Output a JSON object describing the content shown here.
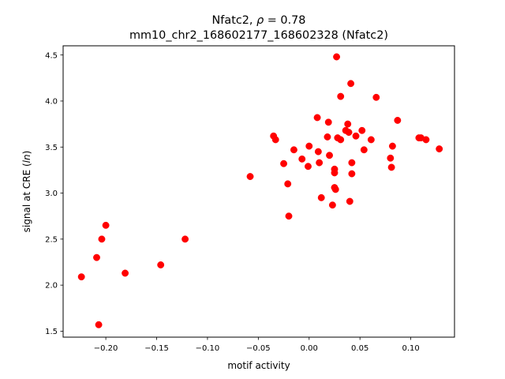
{
  "chart_data": {
    "type": "scatter",
    "title_line1_prefix": "Nfatc2, ",
    "title_line1_rho": "ρ",
    "title_line1_suffix": " = 0.78",
    "title_line2": "mm10_chr2_168602177_168602328 (Nfatc2)",
    "xlabel": "motif activity",
    "ylabel_prefix": "signal at CRE (",
    "ylabel_italic": "ln",
    "ylabel_suffix": ")",
    "xlim": [
      -0.242,
      0.143
    ],
    "ylim": [
      1.435,
      4.6
    ],
    "x_ticks": [
      {
        "value": -0.2,
        "label": "−0.20"
      },
      {
        "value": -0.15,
        "label": "−0.15"
      },
      {
        "value": -0.1,
        "label": "−0.10"
      },
      {
        "value": -0.05,
        "label": "−0.05"
      },
      {
        "value": 0.0,
        "label": "0.00"
      },
      {
        "value": 0.05,
        "label": "0.05"
      },
      {
        "value": 0.1,
        "label": "0.10"
      }
    ],
    "y_ticks": [
      {
        "value": 1.5,
        "label": "1.5"
      },
      {
        "value": 2.0,
        "label": "2.0"
      },
      {
        "value": 2.5,
        "label": "2.5"
      },
      {
        "value": 3.0,
        "label": "3.0"
      },
      {
        "value": 3.5,
        "label": "3.5"
      },
      {
        "value": 4.0,
        "label": "4.0"
      },
      {
        "value": 4.5,
        "label": "4.5"
      }
    ],
    "grid": false,
    "marker_color": "#ff0000",
    "points": [
      {
        "x": -0.224,
        "y": 2.09
      },
      {
        "x": -0.209,
        "y": 2.3
      },
      {
        "x": -0.207,
        "y": 1.57
      },
      {
        "x": -0.204,
        "y": 2.5
      },
      {
        "x": -0.2,
        "y": 2.65
      },
      {
        "x": -0.181,
        "y": 2.13
      },
      {
        "x": -0.146,
        "y": 2.22
      },
      {
        "x": -0.122,
        "y": 2.5
      },
      {
        "x": -0.058,
        "y": 3.18
      },
      {
        "x": -0.035,
        "y": 3.62
      },
      {
        "x": -0.033,
        "y": 3.58
      },
      {
        "x": -0.025,
        "y": 3.32
      },
      {
        "x": -0.021,
        "y": 3.1
      },
      {
        "x": -0.02,
        "y": 2.75
      },
      {
        "x": -0.015,
        "y": 3.47
      },
      {
        "x": -0.007,
        "y": 3.37
      },
      {
        "x": -0.001,
        "y": 3.29
      },
      {
        "x": 0.0,
        "y": 3.51
      },
      {
        "x": 0.008,
        "y": 3.82
      },
      {
        "x": 0.009,
        "y": 3.45
      },
      {
        "x": 0.01,
        "y": 3.33
      },
      {
        "x": 0.012,
        "y": 2.95
      },
      {
        "x": 0.018,
        "y": 3.61
      },
      {
        "x": 0.019,
        "y": 3.77
      },
      {
        "x": 0.02,
        "y": 3.41
      },
      {
        "x": 0.023,
        "y": 2.87
      },
      {
        "x": 0.025,
        "y": 3.26
      },
      {
        "x": 0.025,
        "y": 3.22
      },
      {
        "x": 0.025,
        "y": 3.06
      },
      {
        "x": 0.026,
        "y": 3.04
      },
      {
        "x": 0.027,
        "y": 4.48
      },
      {
        "x": 0.028,
        "y": 3.6
      },
      {
        "x": 0.031,
        "y": 4.05
      },
      {
        "x": 0.031,
        "y": 3.58
      },
      {
        "x": 0.036,
        "y": 3.68
      },
      {
        "x": 0.038,
        "y": 3.75
      },
      {
        "x": 0.039,
        "y": 3.66
      },
      {
        "x": 0.04,
        "y": 2.91
      },
      {
        "x": 0.041,
        "y": 4.19
      },
      {
        "x": 0.042,
        "y": 3.33
      },
      {
        "x": 0.042,
        "y": 3.21
      },
      {
        "x": 0.046,
        "y": 3.62
      },
      {
        "x": 0.052,
        "y": 3.68
      },
      {
        "x": 0.054,
        "y": 3.47
      },
      {
        "x": 0.061,
        "y": 3.58
      },
      {
        "x": 0.066,
        "y": 4.04
      },
      {
        "x": 0.08,
        "y": 3.38
      },
      {
        "x": 0.081,
        "y": 3.28
      },
      {
        "x": 0.082,
        "y": 3.51
      },
      {
        "x": 0.087,
        "y": 3.79
      },
      {
        "x": 0.108,
        "y": 3.6
      },
      {
        "x": 0.11,
        "y": 3.6
      },
      {
        "x": 0.115,
        "y": 3.58
      },
      {
        "x": 0.128,
        "y": 3.48
      }
    ]
  }
}
